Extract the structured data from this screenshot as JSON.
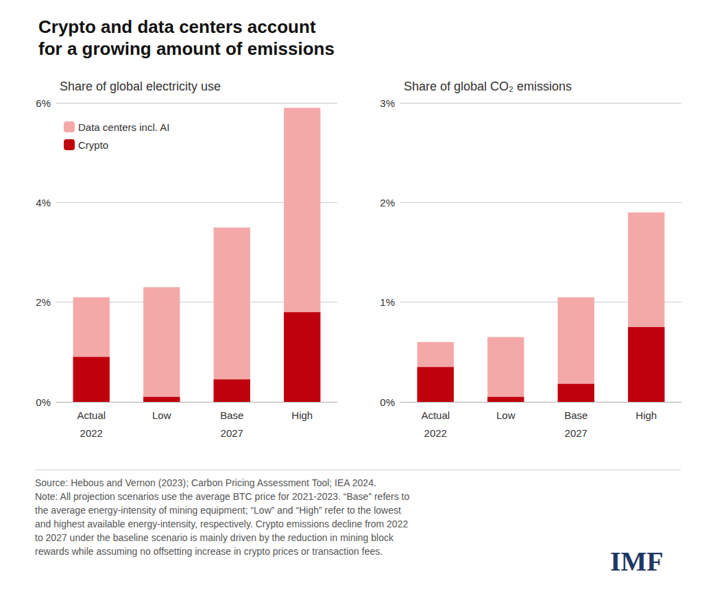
{
  "title": "Crypto and data centers account\nfor a growing amount of emissions",
  "annotations": [
    {
      "text": "Source: Hebous and Vernon (2023); Carbon Pricing Assessment Tool; IEA 2024.\nNote: All projection scenarios use the average BTC price for 2021-2023. “Base” refers to\nthe average energy-intensity of mining equipment; “Low” and “High” refer to the lowest\nand highest available energy-intensity, respectively. Crypto emissions decline from 2022\nto 2027 under the baseline scenario is mainly driven by the reduction in mining block\nrewards while assuming no offsetting increase in crypto prices or transaction fees."
    },
    {
      "text": "IMF",
      "color": "#1f3864"
    }
  ],
  "chart_data": [
    {
      "type": "bar",
      "title": "Share of global electricity use",
      "categories": [
        "Actual",
        "Low",
        "Base",
        "High"
      ],
      "annotations": [
        {
          "text": "2022",
          "category": "Actual"
        },
        {
          "text": "2027",
          "category": "Base"
        }
      ],
      "series": [
        {
          "name": "Data centers incl. AI",
          "color": "#f4a8a8",
          "values": [
            2.1,
            2.3,
            3.5,
            5.9
          ]
        },
        {
          "name": "Crypto",
          "color": "#c0000c",
          "values": [
            0.9,
            0.1,
            0.45,
            1.8
          ]
        }
      ],
      "ylim": [
        0,
        6
      ],
      "yticks": [
        {
          "value": 0,
          "label": "0%"
        },
        {
          "value": 2,
          "label": "2%"
        },
        {
          "value": 4,
          "label": "4%"
        },
        {
          "value": 6,
          "label": "6%"
        }
      ],
      "grid": true,
      "legend": "upper left"
    },
    {
      "type": "bar",
      "title": "Share of global CO₂ emissions",
      "categories": [
        "Actual",
        "Low",
        "Base",
        "High"
      ],
      "annotations": [
        {
          "text": "2022",
          "category": "Actual"
        },
        {
          "text": "2027",
          "category": "Base"
        }
      ],
      "series": [
        {
          "name": "Data centers incl. AI",
          "color": "#f4a8a8",
          "values": [
            0.6,
            0.65,
            1.05,
            1.9
          ]
        },
        {
          "name": "Crypto",
          "color": "#c0000c",
          "values": [
            0.35,
            0.05,
            0.18,
            0.75
          ]
        }
      ],
      "ylim": [
        0,
        3
      ],
      "yticks": [
        {
          "value": 0,
          "label": "0%"
        },
        {
          "value": 1,
          "label": "1%"
        },
        {
          "value": 2,
          "label": "2%"
        },
        {
          "value": 3,
          "label": "3%"
        }
      ],
      "grid": true
    }
  ]
}
